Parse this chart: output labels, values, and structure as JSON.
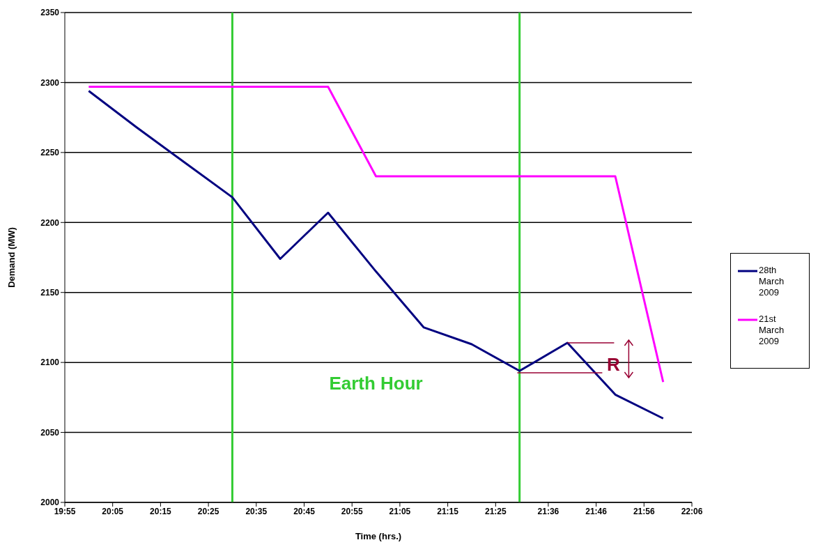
{
  "chart_data": {
    "type": "line",
    "xlabel": "Time (hrs.)",
    "ylabel": "Demand (MW)",
    "x": [
      20.0,
      20.1667,
      20.3333,
      20.5,
      20.6667,
      20.8333,
      21.0,
      21.1667,
      21.3333,
      21.5,
      21.6667,
      21.8333,
      22.0
    ],
    "series": [
      {
        "name": "28th March 2009",
        "color": "#000080",
        "values": [
          2294,
          2268,
          2243,
          2218,
          2174,
          2207,
          2165,
          2125,
          2113,
          2094,
          2114,
          2077,
          2060
        ]
      },
      {
        "name": "21st March 2009",
        "color": "#ff00ff",
        "values": [
          2297,
          2297,
          2297,
          2297,
          2297,
          2297,
          2233,
          2233,
          2233,
          2233,
          2233,
          2233,
          2086
        ]
      }
    ],
    "xlim": [
      19.9167,
      22.1
    ],
    "xticks": [
      {
        "value": 19.9167,
        "label": "19:55"
      },
      {
        "value": 20.0833,
        "label": "20:05"
      },
      {
        "value": 20.25,
        "label": "20:15"
      },
      {
        "value": 20.4167,
        "label": "20:25"
      },
      {
        "value": 20.5833,
        "label": "20:35"
      },
      {
        "value": 20.75,
        "label": "20:45"
      },
      {
        "value": 20.9167,
        "label": "20:55"
      },
      {
        "value": 21.0833,
        "label": "21:05"
      },
      {
        "value": 21.25,
        "label": "21:15"
      },
      {
        "value": 21.4167,
        "label": "21:25"
      },
      {
        "value": 21.6,
        "label": "21:36"
      },
      {
        "value": 21.7667,
        "label": "21:46"
      },
      {
        "value": 21.9333,
        "label": "21:56"
      },
      {
        "value": 22.1,
        "label": "22:06"
      }
    ],
    "ylim": [
      2000,
      2350
    ],
    "yticks": [
      2000,
      2050,
      2100,
      2150,
      2200,
      2250,
      2300,
      2350
    ],
    "grid": "y",
    "legend": "right",
    "ref_lines": [
      {
        "axis": "x",
        "value": 20.5,
        "color": "#33cc33"
      },
      {
        "axis": "x",
        "value": 21.5,
        "color": "#33cc33"
      }
    ],
    "annotations": [
      "Earth Hour",
      {
        "text": "R",
        "x": 21.6667,
        "y": 2114
      }
    ]
  }
}
